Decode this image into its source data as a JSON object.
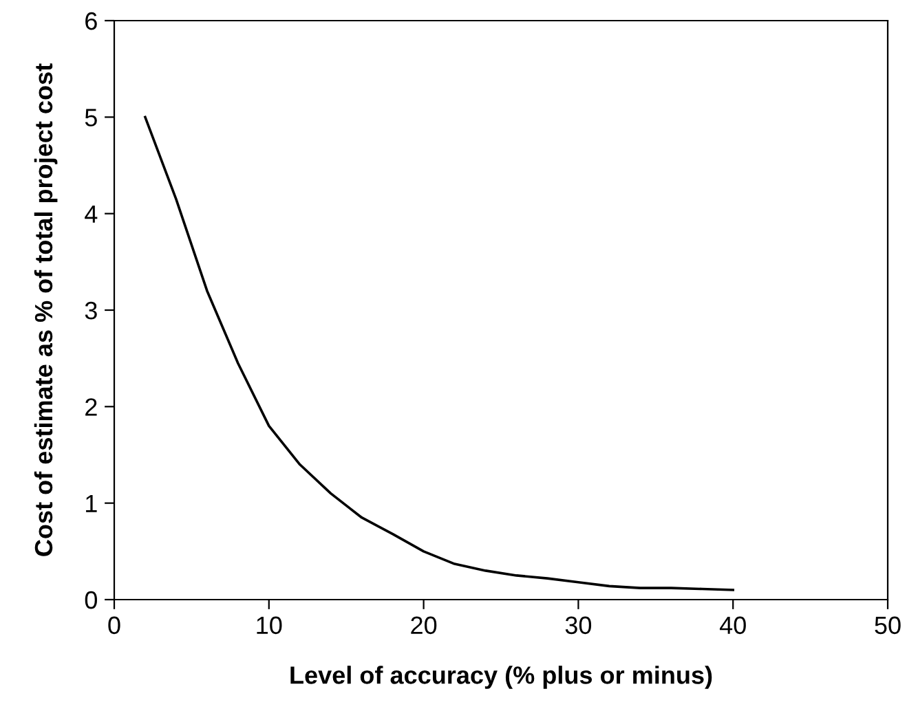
{
  "chart_data": {
    "type": "line",
    "xlabel": "Level of accuracy (% plus or minus)",
    "ylabel": "Cost of estimate as % of total project cost",
    "x": [
      2,
      4,
      6,
      8,
      10,
      12,
      14,
      16,
      18,
      20,
      22,
      24,
      26,
      28,
      30,
      32,
      34,
      36,
      38,
      40
    ],
    "series": [
      {
        "color": "#000000",
        "values": [
          5,
          4.15,
          3.2,
          2.45,
          1.8,
          1.4,
          1.1,
          0.85,
          0.68,
          0.5,
          0.37,
          0.3,
          0.25,
          0.22,
          0.18,
          0.14,
          0.12,
          0.12,
          0.11,
          0.1
        ]
      }
    ],
    "xlim": [
      0,
      50
    ],
    "xticks": [
      0,
      10,
      20,
      30,
      40,
      50
    ],
    "ylim": [
      0,
      6
    ],
    "yticks": [
      0,
      1,
      2,
      3,
      4,
      5,
      6
    ],
    "grid": false,
    "legend": false,
    "marker": "none",
    "line_style": "solid"
  }
}
